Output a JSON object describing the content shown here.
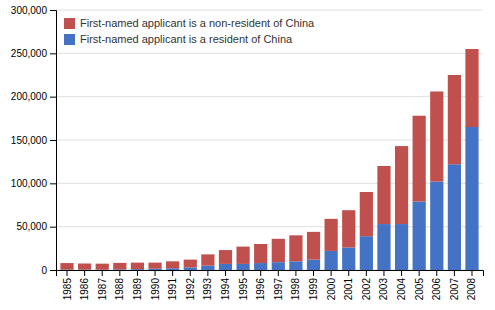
{
  "chart_data": {
    "type": "bar",
    "stacked": true,
    "categories": [
      "1985",
      "1986",
      "1987",
      "1988",
      "1989",
      "1990",
      "1991",
      "1992",
      "1993",
      "1994",
      "1995",
      "1996",
      "1997",
      "1998",
      "1999",
      "2000",
      "2001",
      "2002",
      "2003",
      "2004",
      "2005",
      "2006",
      "2007",
      "2008"
    ],
    "series": [
      {
        "name": "First-named applicant is a resident of China",
        "color": "#4472C4",
        "values": [
          500,
          500,
          300,
          700,
          1000,
          1500,
          2000,
          3000,
          5000,
          7000,
          7000,
          8000,
          9000,
          10000,
          12000,
          22000,
          26000,
          39000,
          53000,
          53000,
          79000,
          102000,
          122000,
          165000
        ]
      },
      {
        "name": "First-named applicant is a non-resident of China",
        "color": "#C0504D",
        "values": [
          7500,
          7000,
          7000,
          7500,
          7500,
          7000,
          8000,
          9000,
          13000,
          16000,
          20000,
          22000,
          27000,
          30000,
          32000,
          37000,
          43000,
          51000,
          67000,
          90000,
          99000,
          104000,
          103000,
          90000
        ]
      }
    ],
    "ylim": [
      0,
      300000
    ],
    "yticks": [
      0,
      {
        "value": 50000,
        "label": "50,000"
      },
      {
        "value": 100000,
        "label": "100,000"
      },
      {
        "value": 150000,
        "label": "150,000"
      },
      {
        "value": 200000,
        "label": "200,000"
      },
      {
        "value": 250000,
        "label": "250,000"
      },
      {
        "value": 300000,
        "label": "300,000"
      }
    ],
    "grid": true,
    "legend": "upper left"
  }
}
